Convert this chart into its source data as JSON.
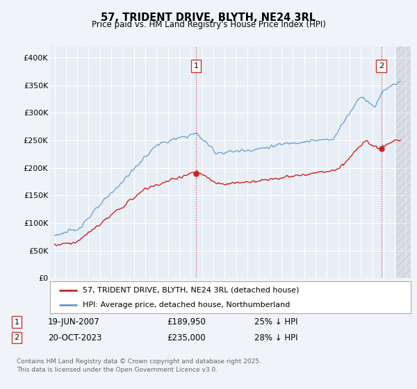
{
  "title": "57, TRIDENT DRIVE, BLYTH, NE24 3RL",
  "subtitle": "Price paid vs. HM Land Registry's House Price Index (HPI)",
  "bg_color": "#f0f4f8",
  "plot_bg_color": "#e8eef5",
  "legend_line1": "57, TRIDENT DRIVE, BLYTH, NE24 3RL (detached house)",
  "legend_line2": "HPI: Average price, detached house, Northumberland",
  "annotation1_date": "19-JUN-2007",
  "annotation1_price": "£189,950",
  "annotation1_hpi": "25% ↓ HPI",
  "annotation2_date": "20-OCT-2023",
  "annotation2_price": "£235,000",
  "annotation2_hpi": "28% ↓ HPI",
  "footer": "Contains HM Land Registry data © Crown copyright and database right 2025.\nThis data is licensed under the Open Government Licence v3.0.",
  "ylim": [
    0,
    420000
  ],
  "yticks": [
    0,
    50000,
    100000,
    150000,
    200000,
    250000,
    300000,
    350000,
    400000
  ],
  "ytick_labels": [
    "£0",
    "£50K",
    "£100K",
    "£150K",
    "£200K",
    "£250K",
    "£300K",
    "£350K",
    "£400K"
  ],
  "sale1_x": 2007.47,
  "sale1_y": 189950,
  "sale2_x": 2023.8,
  "sale2_y": 235000,
  "hpi_color": "#6699cc",
  "price_color": "#cc2222",
  "vline_color": "#cc3333",
  "xmin": 1994.6,
  "xmax": 2026.4
}
